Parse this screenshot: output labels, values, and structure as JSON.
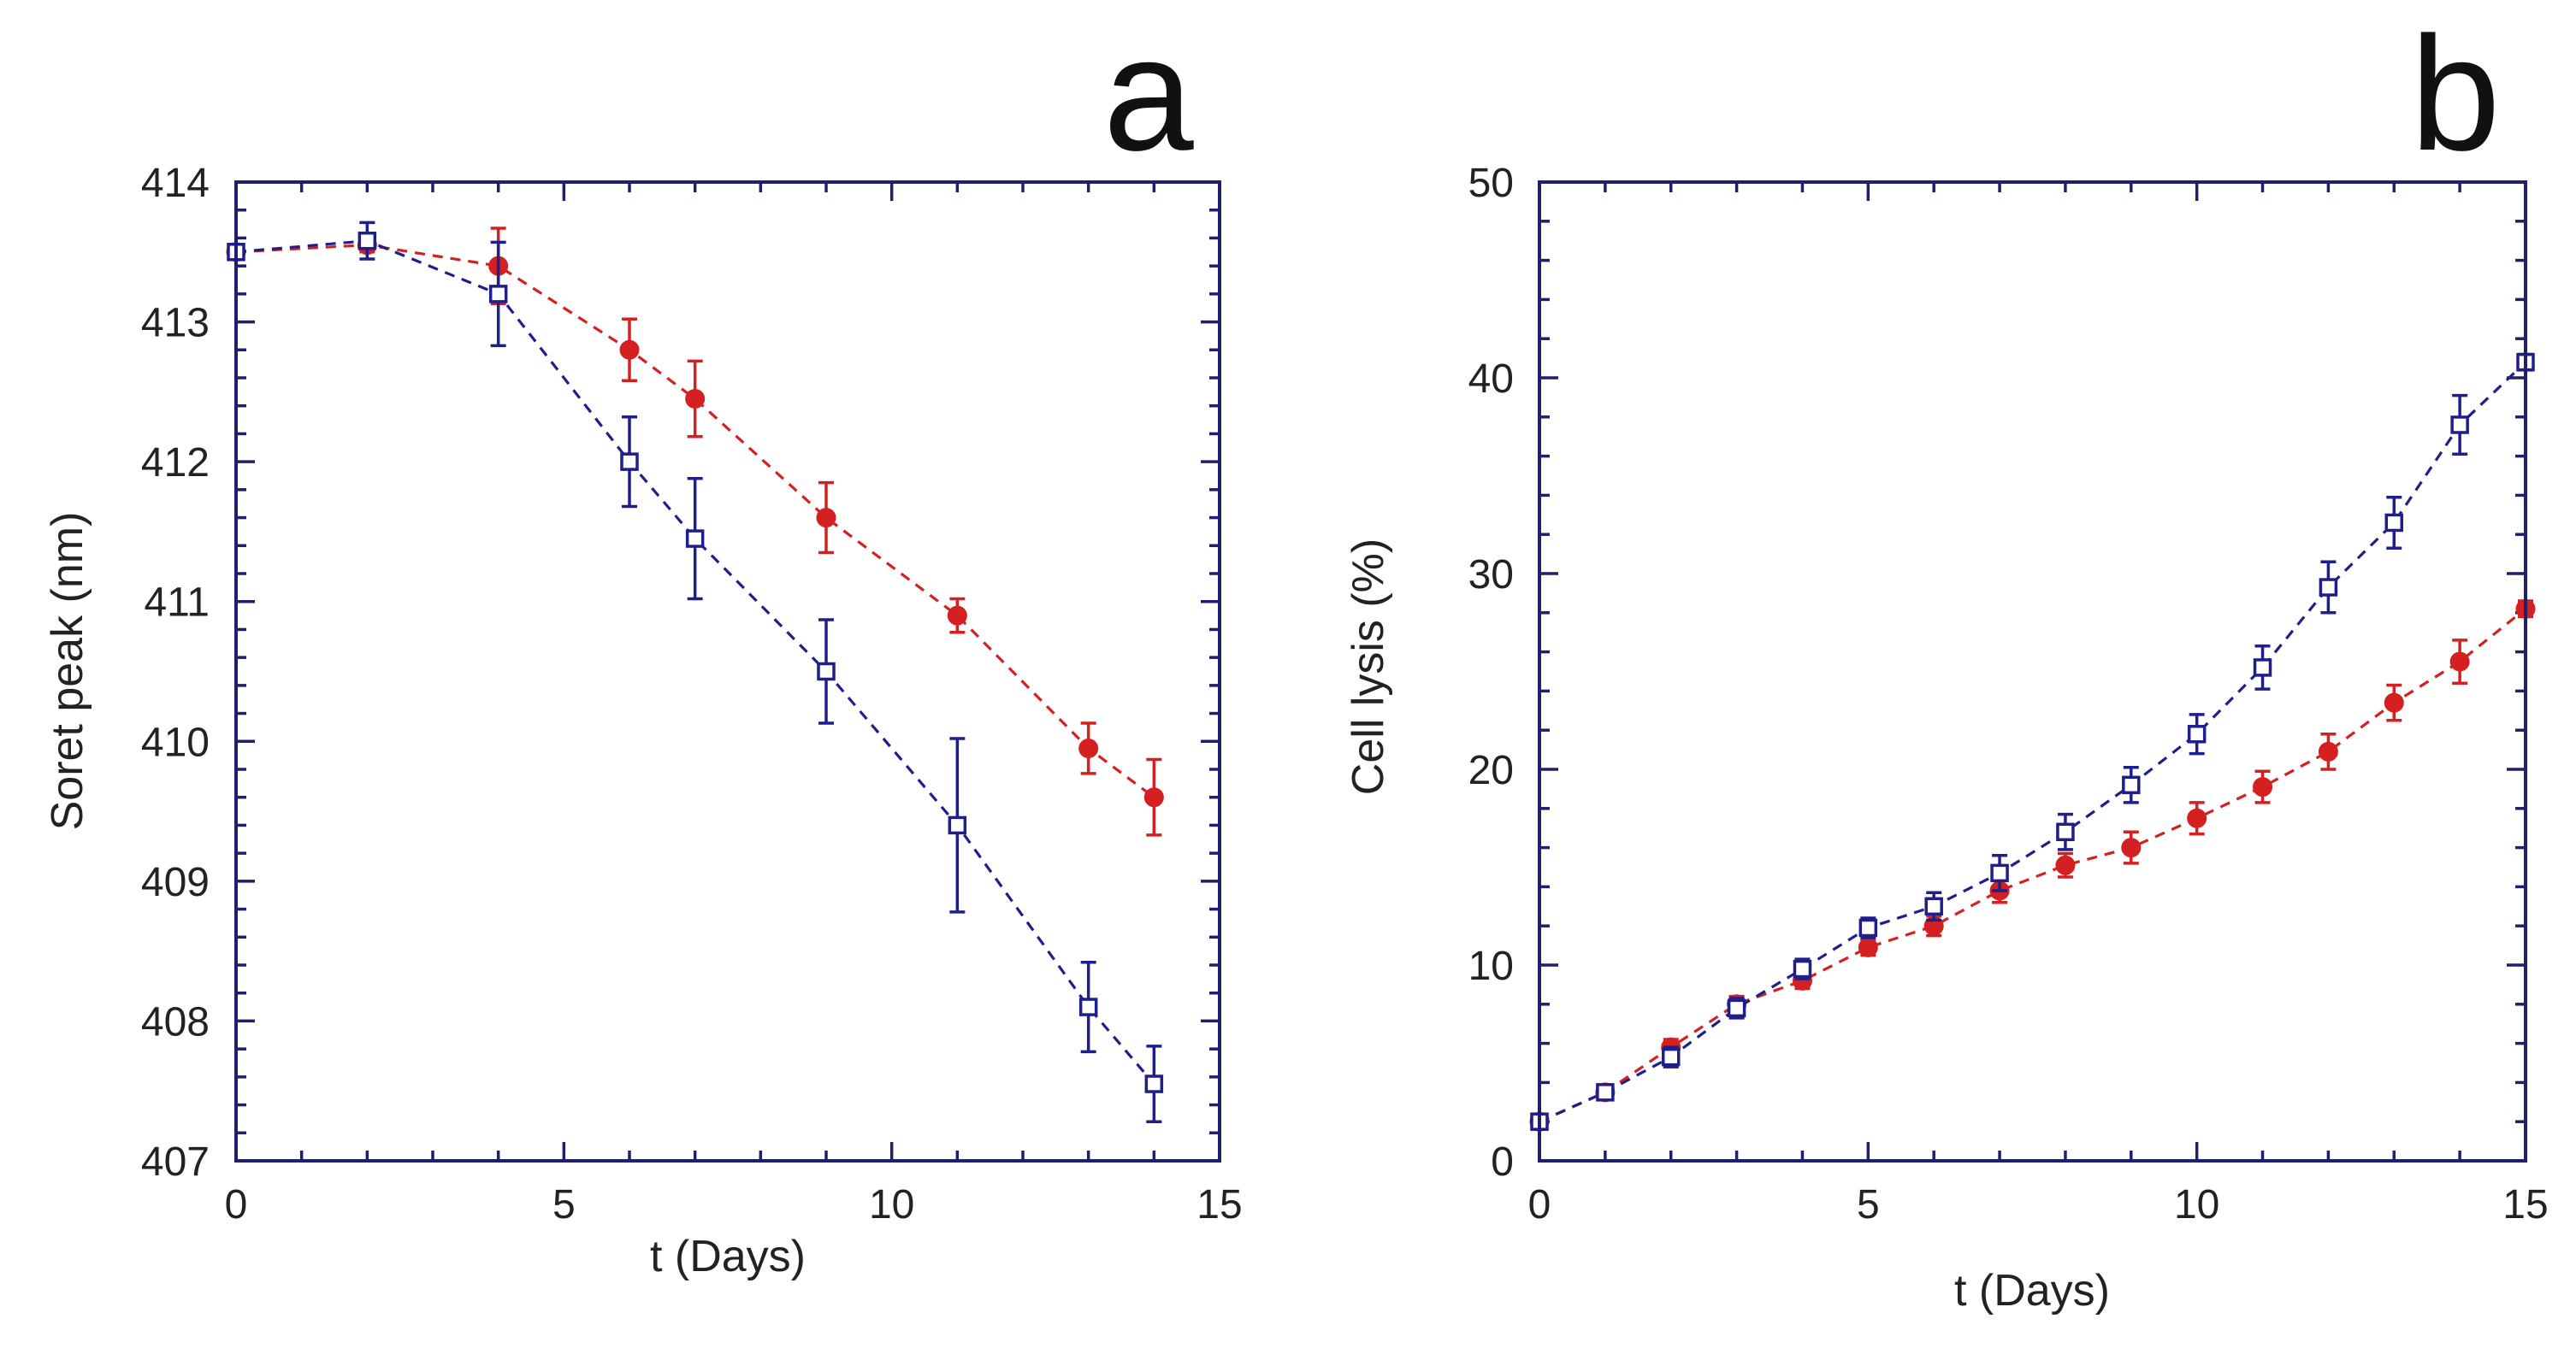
{
  "colors": {
    "axis": "#1f1f6e",
    "series_open_square": "#1f1f8c",
    "series_filled_circle": "#d42020"
  },
  "chart_data": [
    {
      "panel_label": "a",
      "type": "scatter",
      "title": "",
      "xlabel": "t  (Days)",
      "ylabel": "Soret peak  (nm)",
      "xlim": [
        0,
        15
      ],
      "ylim": [
        407,
        414
      ],
      "xticks": [
        0,
        5,
        10,
        15
      ],
      "yticks": [
        407,
        408,
        409,
        410,
        411,
        412,
        413,
        414
      ],
      "grid": false,
      "series": [
        {
          "name": "open squares",
          "marker": "open-square",
          "color": "#1f1f8c",
          "x": [
            0,
            2,
            4,
            6,
            7,
            9,
            11,
            13,
            14
          ],
          "y": [
            413.5,
            413.58,
            413.2,
            412.0,
            411.45,
            410.5,
            409.4,
            408.1,
            407.55
          ],
          "err": [
            0.05,
            0.13,
            0.37,
            0.32,
            0.43,
            0.37,
            0.62,
            0.32,
            0.27
          ]
        },
        {
          "name": "filled circles",
          "marker": "filled-circle",
          "color": "#d42020",
          "x": [
            0,
            2,
            4,
            6,
            7,
            9,
            11,
            13,
            14
          ],
          "y": [
            413.5,
            413.55,
            413.4,
            412.8,
            412.45,
            411.6,
            410.9,
            409.95,
            409.6
          ],
          "err": [
            0.05,
            0.05,
            0.27,
            0.22,
            0.27,
            0.25,
            0.12,
            0.18,
            0.27
          ]
        }
      ]
    },
    {
      "panel_label": "b",
      "type": "scatter",
      "title": "",
      "xlabel": "t  (Days)",
      "ylabel": "Cell lysis  (%)",
      "xlim": [
        0,
        15
      ],
      "ylim": [
        0,
        50
      ],
      "xticks": [
        0,
        5,
        10,
        15
      ],
      "yticks": [
        0,
        10,
        20,
        30,
        40,
        50
      ],
      "grid": false,
      "series": [
        {
          "name": "open squares",
          "marker": "open-square",
          "color": "#1f1f8c",
          "x": [
            0,
            1,
            2,
            3,
            4,
            5,
            6,
            7,
            8,
            9,
            10,
            11,
            12,
            13,
            14,
            15
          ],
          "y": [
            2.0,
            3.5,
            5.3,
            7.8,
            9.8,
            11.9,
            13.0,
            14.7,
            16.8,
            19.2,
            21.8,
            25.2,
            29.3,
            32.6,
            37.6,
            40.8
          ],
          "err": [
            0.2,
            0.3,
            0.5,
            0.5,
            0.5,
            0.5,
            0.7,
            0.9,
            0.9,
            0.9,
            1.0,
            1.1,
            1.3,
            1.3,
            1.5,
            0.4
          ]
        },
        {
          "name": "filled circles",
          "marker": "filled-circle",
          "color": "#d42020",
          "x": [
            0,
            1,
            2,
            3,
            4,
            5,
            6,
            7,
            8,
            9,
            10,
            11,
            12,
            13,
            14,
            15
          ],
          "y": [
            2.0,
            3.5,
            5.8,
            8.0,
            9.2,
            10.9,
            12.0,
            13.8,
            15.1,
            16.0,
            17.5,
            19.1,
            20.9,
            23.4,
            25.5,
            28.2
          ],
          "err": [
            0.2,
            0.3,
            0.4,
            0.4,
            0.4,
            0.4,
            0.5,
            0.6,
            0.6,
            0.8,
            0.8,
            0.8,
            0.9,
            0.9,
            1.1,
            0.4
          ]
        }
      ]
    }
  ]
}
